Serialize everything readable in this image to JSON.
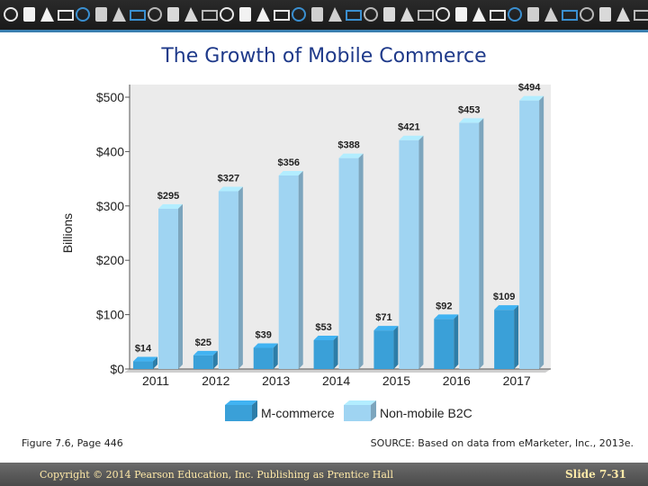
{
  "slide": {
    "title": "The Growth of Mobile Commerce",
    "figure_caption": "Figure 7.6, Page 446",
    "source": "SOURCE: Based on data from eMarketer, Inc., 2013e.",
    "copyright": "Copyright © 2014 Pearson Education, Inc. Publishing as Prentice Hall",
    "slide_number": "Slide 7-31"
  },
  "colors": {
    "title": "#1f3a8a",
    "mcommerce": "#3aa0d8",
    "nonmobile": "#9fd4f2",
    "banner": "#1f1f1f",
    "footer": "#5a5a5a"
  },
  "chart_data": {
    "type": "bar",
    "ylabel": "Billions",
    "ylim": [
      0,
      500
    ],
    "yticks": [
      0,
      100,
      200,
      300,
      400,
      500
    ],
    "ytick_labels": [
      "$0",
      "$100",
      "$200",
      "$300",
      "$400",
      "$500"
    ],
    "categories": [
      "2011",
      "2012",
      "2013",
      "2014",
      "2015",
      "2016",
      "2017"
    ],
    "series": [
      {
        "name": "M-commerce",
        "values": [
          14,
          25,
          39,
          53,
          71,
          92,
          109
        ],
        "labels": [
          "$14",
          "$25",
          "$39",
          "$53",
          "$71",
          "$92",
          "$109"
        ]
      },
      {
        "name": "Non-mobile B2C",
        "values": [
          295,
          327,
          356,
          388,
          421,
          453,
          494
        ],
        "labels": [
          "$295",
          "$327",
          "$356",
          "$388",
          "$421",
          "$453",
          "$494"
        ]
      }
    ],
    "legend_position": "bottom",
    "grid": false
  }
}
